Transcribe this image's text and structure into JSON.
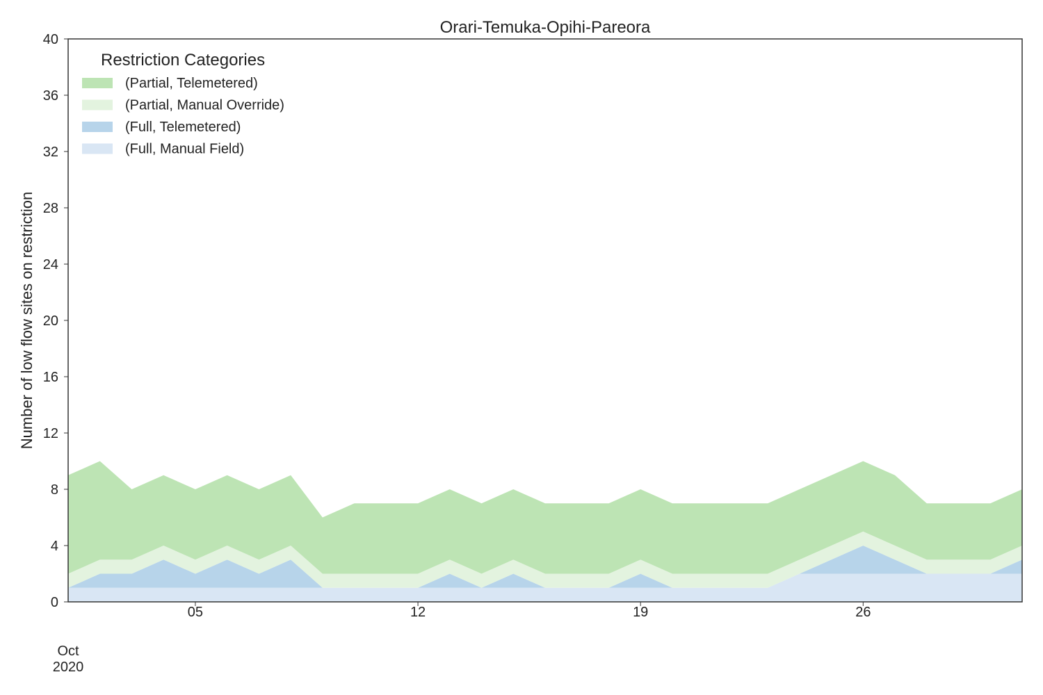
{
  "chart_data": {
    "type": "area",
    "stacked": true,
    "title": "Orari-Temuka-Opihi-Pareora",
    "xlabel": "",
    "ylabel": "Number of low flow sites on restriction",
    "ylim": [
      0,
      40
    ],
    "yticks": [
      "0",
      "4",
      "8",
      "12",
      "16",
      "20",
      "24",
      "28",
      "32",
      "36",
      "40"
    ],
    "xlim": [
      "2020-10-01",
      "2020-10-31"
    ],
    "xticks": [
      {
        "date": "2020-10-05",
        "label": "05"
      },
      {
        "date": "2020-10-12",
        "label": "12"
      },
      {
        "date": "2020-10-19",
        "label": "19"
      },
      {
        "date": "2020-10-26",
        "label": "26"
      }
    ],
    "xtick_secondary": {
      "month": "Oct",
      "year": "2020"
    },
    "grid": false,
    "legend": {
      "title": "Restriction Categories",
      "placement": "top-left"
    },
    "x": [
      "2020-10-01",
      "2020-10-02",
      "2020-10-03",
      "2020-10-04",
      "2020-10-05",
      "2020-10-06",
      "2020-10-07",
      "2020-10-08",
      "2020-10-09",
      "2020-10-10",
      "2020-10-11",
      "2020-10-12",
      "2020-10-13",
      "2020-10-14",
      "2020-10-15",
      "2020-10-16",
      "2020-10-17",
      "2020-10-18",
      "2020-10-19",
      "2020-10-20",
      "2020-10-21",
      "2020-10-22",
      "2020-10-23",
      "2020-10-24",
      "2020-10-25",
      "2020-10-26",
      "2020-10-27",
      "2020-10-28",
      "2020-10-29",
      "2020-10-30",
      "2020-10-31"
    ],
    "series": [
      {
        "name": "(Full, Manual Field)",
        "color": "#d9e6f4",
        "values": [
          1,
          1,
          1,
          1,
          1,
          1,
          1,
          1,
          1,
          1,
          1,
          1,
          1,
          1,
          1,
          1,
          1,
          1,
          1,
          1,
          1,
          1,
          1,
          2,
          2,
          2,
          2,
          2,
          2,
          2,
          2
        ]
      },
      {
        "name": "(Full, Telemetered)",
        "color": "#b7d4ea",
        "values": [
          0,
          1,
          1,
          2,
          1,
          2,
          1,
          2,
          0,
          0,
          0,
          0,
          1,
          0,
          1,
          0,
          0,
          0,
          1,
          0,
          0,
          0,
          0,
          0,
          1,
          2,
          1,
          0,
          0,
          0,
          1
        ]
      },
      {
        "name": "(Partial, Manual Override)",
        "color": "#e3f3df",
        "values": [
          1,
          1,
          1,
          1,
          1,
          1,
          1,
          1,
          1,
          1,
          1,
          1,
          1,
          1,
          1,
          1,
          1,
          1,
          1,
          1,
          1,
          1,
          1,
          1,
          1,
          1,
          1,
          1,
          1,
          1,
          1
        ]
      },
      {
        "name": "(Partial, Telemetered)",
        "color": "#bde4b4",
        "values": [
          7,
          7,
          5,
          5,
          5,
          5,
          5,
          5,
          4,
          5,
          5,
          5,
          5,
          5,
          5,
          5,
          5,
          5,
          5,
          5,
          5,
          5,
          5,
          5,
          5,
          5,
          5,
          4,
          4,
          4,
          4
        ]
      }
    ]
  }
}
